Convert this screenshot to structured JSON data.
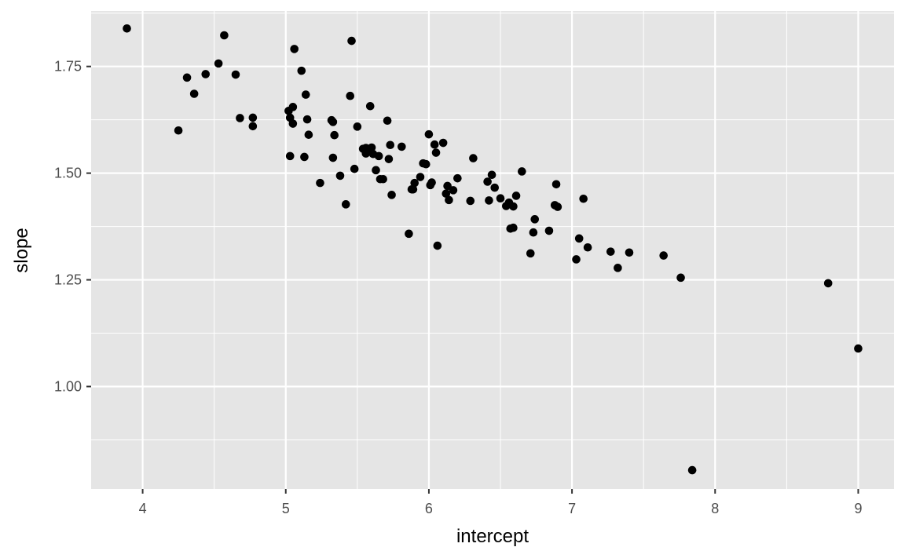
{
  "chart_data": {
    "type": "scatter",
    "xlabel": "intercept",
    "ylabel": "slope",
    "xlim": [
      3.64,
      9.25
    ],
    "ylim": [
      0.76,
      1.88
    ],
    "x_ticks": [
      4,
      5,
      6,
      7,
      8,
      9
    ],
    "x_tick_labels": [
      "4",
      "5",
      "6",
      "7",
      "8",
      "9"
    ],
    "y_ticks": [
      1.0,
      1.25,
      1.5,
      1.75
    ],
    "y_tick_labels": [
      "1.00",
      "1.25",
      "1.50",
      "1.75"
    ],
    "grid": true,
    "legend": "none",
    "colors": {
      "panel": "#e5e5e5",
      "grid": "#ffffff",
      "point": "#000000"
    },
    "points": [
      {
        "x": 3.89,
        "y": 1.839
      },
      {
        "x": 4.25,
        "y": 1.6
      },
      {
        "x": 4.31,
        "y": 1.724
      },
      {
        "x": 4.36,
        "y": 1.686
      },
      {
        "x": 4.44,
        "y": 1.732
      },
      {
        "x": 4.53,
        "y": 1.757
      },
      {
        "x": 4.57,
        "y": 1.823
      },
      {
        "x": 4.65,
        "y": 1.731
      },
      {
        "x": 4.68,
        "y": 1.629
      },
      {
        "x": 4.77,
        "y": 1.63
      },
      {
        "x": 4.77,
        "y": 1.61
      },
      {
        "x": 5.02,
        "y": 1.646
      },
      {
        "x": 5.03,
        "y": 1.63
      },
      {
        "x": 5.03,
        "y": 1.54
      },
      {
        "x": 5.05,
        "y": 1.655
      },
      {
        "x": 5.05,
        "y": 1.616
      },
      {
        "x": 5.06,
        "y": 1.791
      },
      {
        "x": 5.11,
        "y": 1.74
      },
      {
        "x": 5.13,
        "y": 1.538
      },
      {
        "x": 5.14,
        "y": 1.684
      },
      {
        "x": 5.15,
        "y": 1.626
      },
      {
        "x": 5.16,
        "y": 1.59
      },
      {
        "x": 5.24,
        "y": 1.477
      },
      {
        "x": 5.32,
        "y": 1.624
      },
      {
        "x": 5.33,
        "y": 1.62
      },
      {
        "x": 5.33,
        "y": 1.536
      },
      {
        "x": 5.34,
        "y": 1.589
      },
      {
        "x": 5.38,
        "y": 1.494
      },
      {
        "x": 5.42,
        "y": 1.427
      },
      {
        "x": 5.45,
        "y": 1.681
      },
      {
        "x": 5.46,
        "y": 1.81
      },
      {
        "x": 5.48,
        "y": 1.51
      },
      {
        "x": 5.5,
        "y": 1.609
      },
      {
        "x": 5.54,
        "y": 1.557
      },
      {
        "x": 5.56,
        "y": 1.559
      },
      {
        "x": 5.56,
        "y": 1.546
      },
      {
        "x": 5.59,
        "y": 1.657
      },
      {
        "x": 5.59,
        "y": 1.552
      },
      {
        "x": 5.6,
        "y": 1.56
      },
      {
        "x": 5.61,
        "y": 1.545
      },
      {
        "x": 5.63,
        "y": 1.507
      },
      {
        "x": 5.65,
        "y": 1.54
      },
      {
        "x": 5.66,
        "y": 1.486
      },
      {
        "x": 5.68,
        "y": 1.486
      },
      {
        "x": 5.71,
        "y": 1.623
      },
      {
        "x": 5.72,
        "y": 1.533
      },
      {
        "x": 5.73,
        "y": 1.566
      },
      {
        "x": 5.74,
        "y": 1.449
      },
      {
        "x": 5.81,
        "y": 1.562
      },
      {
        "x": 5.86,
        "y": 1.358
      },
      {
        "x": 5.88,
        "y": 1.462
      },
      {
        "x": 5.89,
        "y": 1.462
      },
      {
        "x": 5.9,
        "y": 1.477
      },
      {
        "x": 5.94,
        "y": 1.491
      },
      {
        "x": 5.96,
        "y": 1.523
      },
      {
        "x": 5.98,
        "y": 1.521
      },
      {
        "x": 6.0,
        "y": 1.591
      },
      {
        "x": 6.01,
        "y": 1.472
      },
      {
        "x": 6.02,
        "y": 1.478
      },
      {
        "x": 6.04,
        "y": 1.567
      },
      {
        "x": 6.05,
        "y": 1.548
      },
      {
        "x": 6.06,
        "y": 1.33
      },
      {
        "x": 6.1,
        "y": 1.571
      },
      {
        "x": 6.12,
        "y": 1.452
      },
      {
        "x": 6.13,
        "y": 1.47
      },
      {
        "x": 6.14,
        "y": 1.437
      },
      {
        "x": 6.17,
        "y": 1.46
      },
      {
        "x": 6.2,
        "y": 1.488
      },
      {
        "x": 6.29,
        "y": 1.435
      },
      {
        "x": 6.31,
        "y": 1.535
      },
      {
        "x": 6.41,
        "y": 1.48
      },
      {
        "x": 6.42,
        "y": 1.436
      },
      {
        "x": 6.44,
        "y": 1.496
      },
      {
        "x": 6.46,
        "y": 1.466
      },
      {
        "x": 6.5,
        "y": 1.441
      },
      {
        "x": 6.54,
        "y": 1.423
      },
      {
        "x": 6.56,
        "y": 1.431
      },
      {
        "x": 6.57,
        "y": 1.37
      },
      {
        "x": 6.59,
        "y": 1.372
      },
      {
        "x": 6.59,
        "y": 1.422
      },
      {
        "x": 6.61,
        "y": 1.447
      },
      {
        "x": 6.65,
        "y": 1.504
      },
      {
        "x": 6.71,
        "y": 1.312
      },
      {
        "x": 6.73,
        "y": 1.361
      },
      {
        "x": 6.74,
        "y": 1.392
      },
      {
        "x": 6.84,
        "y": 1.365
      },
      {
        "x": 6.88,
        "y": 1.425
      },
      {
        "x": 6.89,
        "y": 1.474
      },
      {
        "x": 6.9,
        "y": 1.421
      },
      {
        "x": 7.03,
        "y": 1.298
      },
      {
        "x": 7.05,
        "y": 1.347
      },
      {
        "x": 7.08,
        "y": 1.44
      },
      {
        "x": 7.11,
        "y": 1.326
      },
      {
        "x": 7.27,
        "y": 1.316
      },
      {
        "x": 7.32,
        "y": 1.278
      },
      {
        "x": 7.4,
        "y": 1.314
      },
      {
        "x": 7.64,
        "y": 1.307
      },
      {
        "x": 7.76,
        "y": 1.255
      },
      {
        "x": 7.84,
        "y": 0.804
      },
      {
        "x": 8.79,
        "y": 1.242
      },
      {
        "x": 9.0,
        "y": 1.089
      }
    ]
  }
}
